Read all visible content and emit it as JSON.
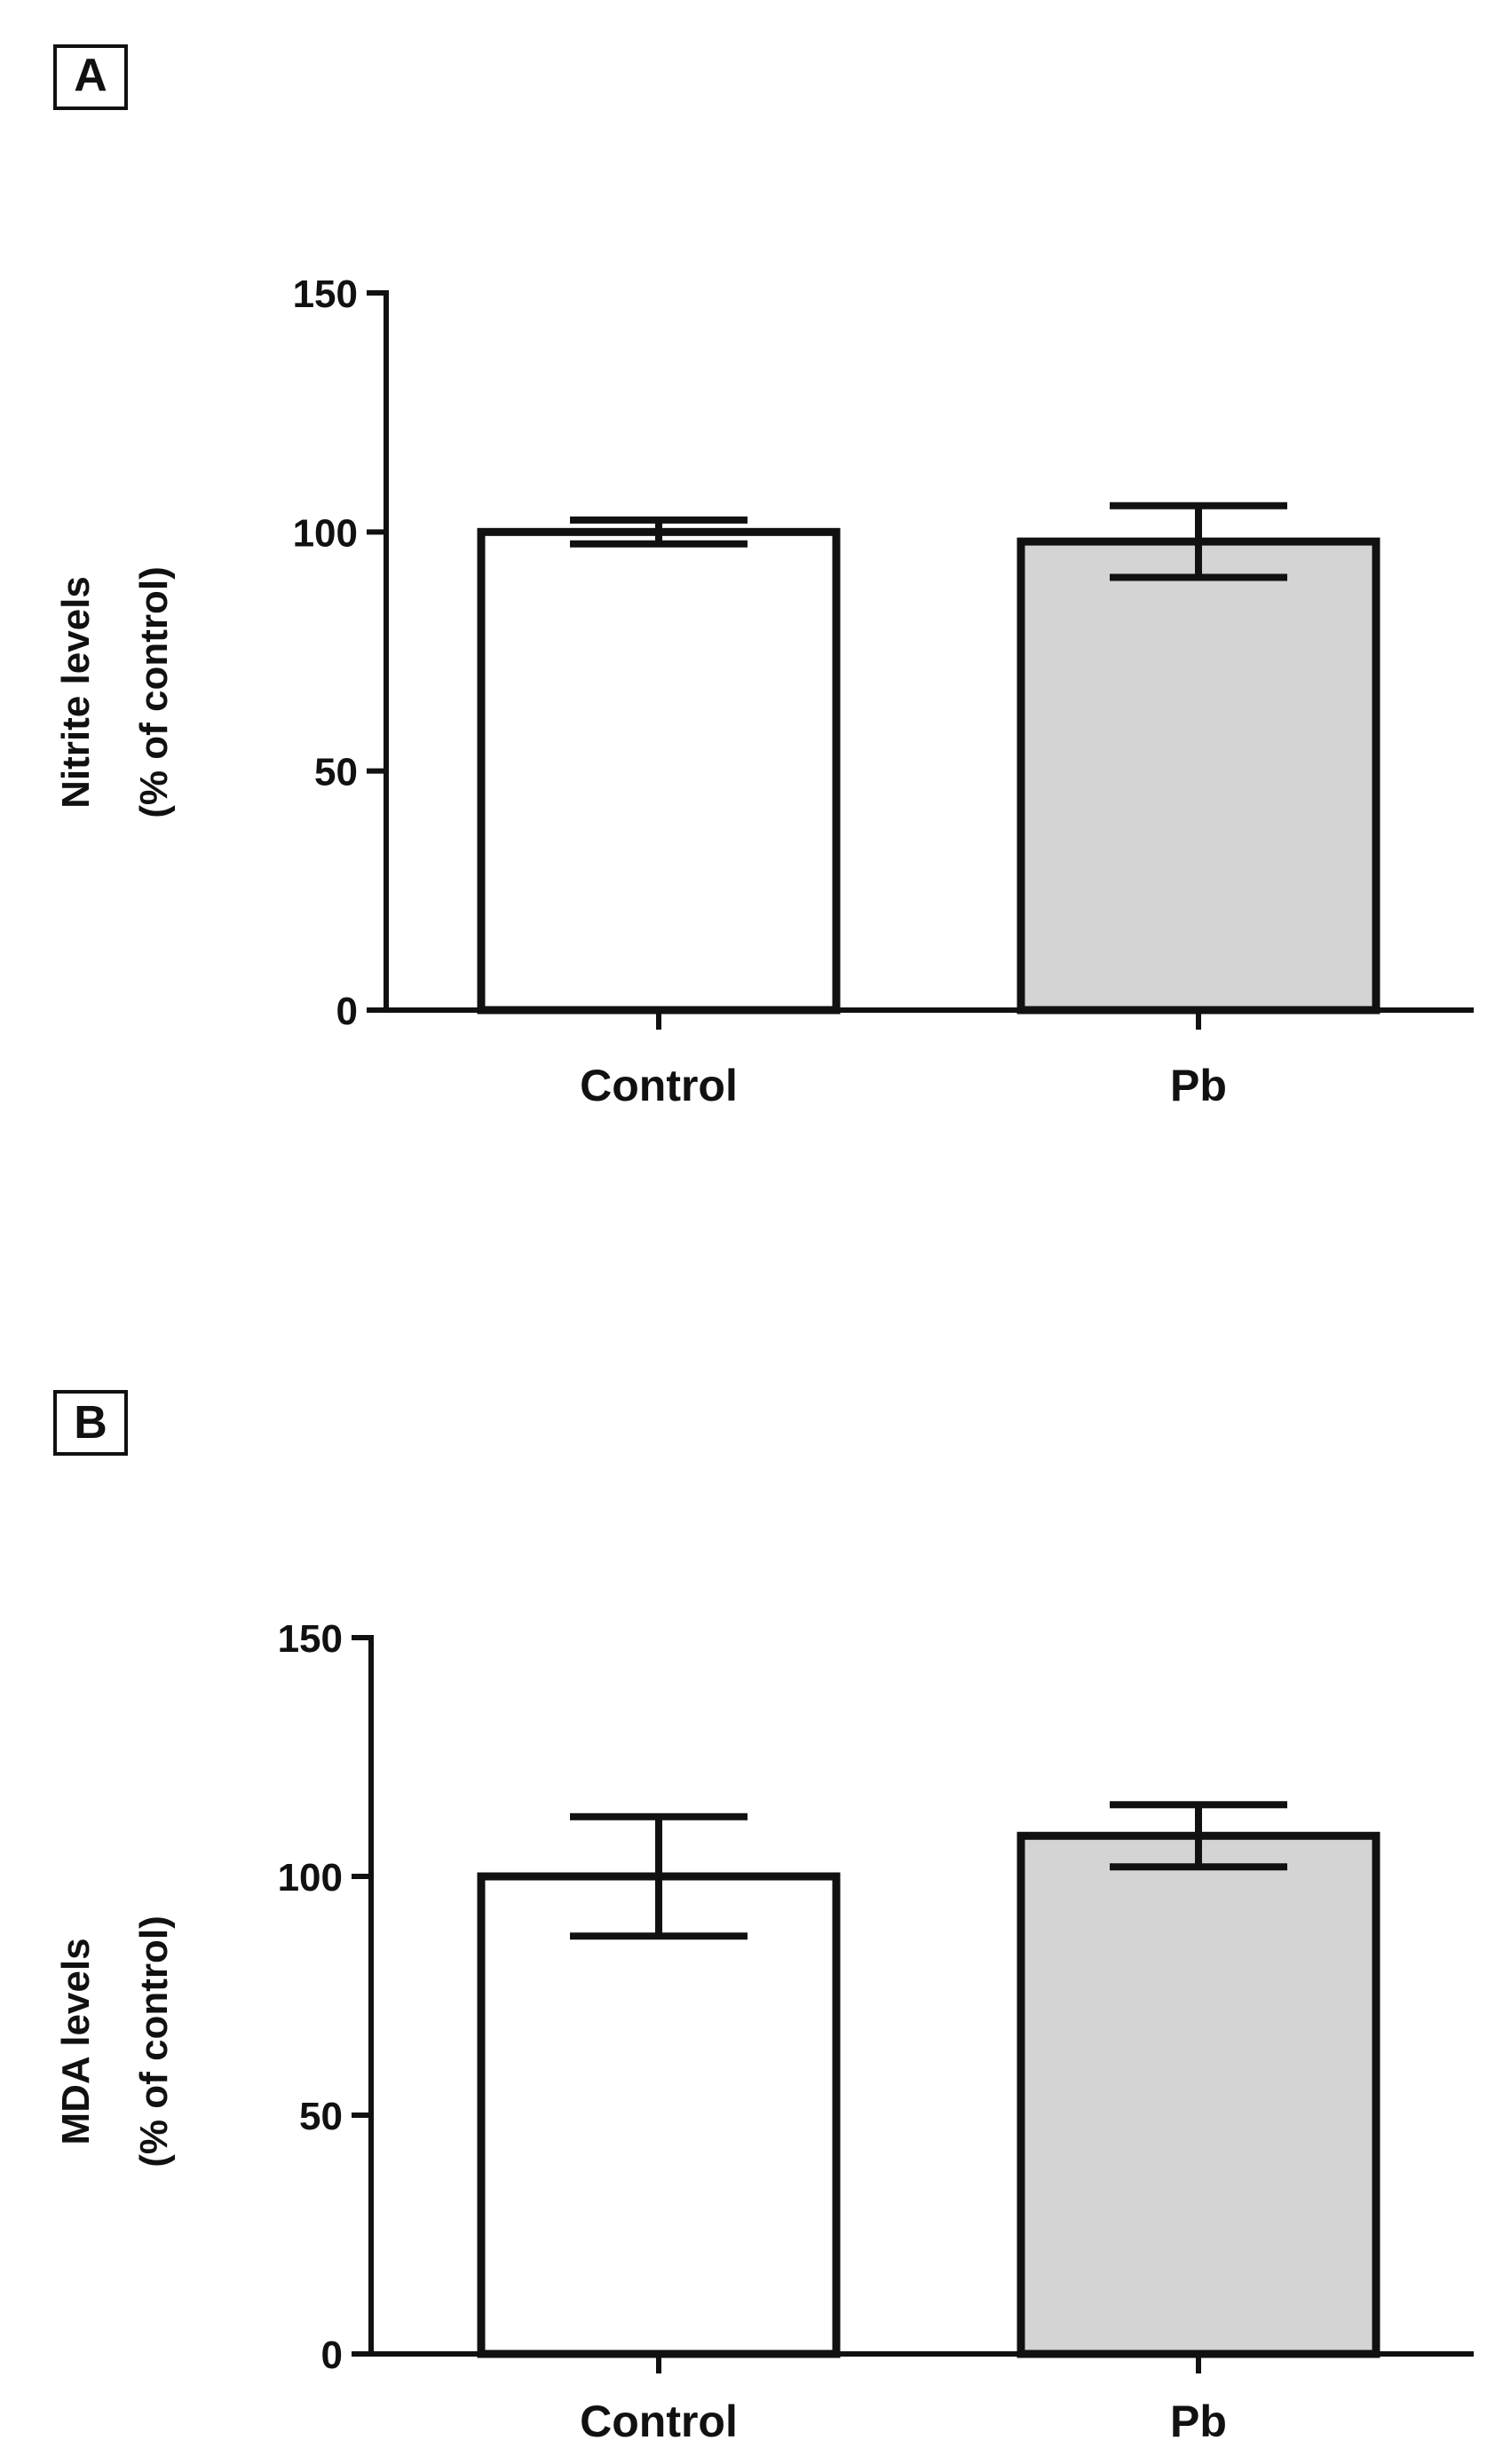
{
  "colors": {
    "ink": "#111111",
    "control_fill": "#ffffff",
    "pb_fill": "#d4d4d4"
  },
  "chart_data": [
    {
      "type": "bar",
      "panel_label": "A",
      "ylabel_line1": "Nitrite levels",
      "ylabel_line2": "(% of control)",
      "categories": [
        "Control",
        "Pb"
      ],
      "values": [
        100,
        98
      ],
      "errors": [
        2.5,
        7.5
      ],
      "ylim": [
        0,
        150
      ],
      "yticks": [
        0,
        50,
        100,
        150
      ],
      "ytick_labels": [
        "0",
        "50",
        "100",
        "150"
      ],
      "fills": [
        "#ffffff",
        "#d4d4d4"
      ],
      "title": "",
      "xlabel": ""
    },
    {
      "type": "bar",
      "panel_label": "B",
      "ylabel_line1": "MDA levels",
      "ylabel_line2": "(% of control)",
      "categories": [
        "Control",
        "Pb"
      ],
      "values": [
        100,
        108.5
      ],
      "errors": [
        12.5,
        6.5
      ],
      "ylim": [
        0,
        150
      ],
      "yticks": [
        0,
        50,
        100,
        150
      ],
      "ytick_labels": [
        "0",
        "50",
        "100",
        "150"
      ],
      "fills": [
        "#ffffff",
        "#d4d4d4"
      ],
      "title": "",
      "xlabel": ""
    }
  ]
}
